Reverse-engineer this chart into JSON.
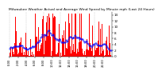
{
  "title": "Milwaukee Weather Actual and Average Wind Speed by Minute mph (Last 24 Hours)",
  "background_color": "#ffffff",
  "bar_color": "#ff0000",
  "line_color": "#0000ff",
  "grid_color": "#aaaaaa",
  "n_points": 144,
  "y_max": 15,
  "y_min": 0,
  "y_ticks": [
    0,
    2,
    4,
    6,
    8,
    10,
    12,
    14
  ],
  "title_fontsize": 3.2,
  "tick_fontsize": 3.0,
  "grid_interval": 24,
  "x_tick_interval": 12
}
